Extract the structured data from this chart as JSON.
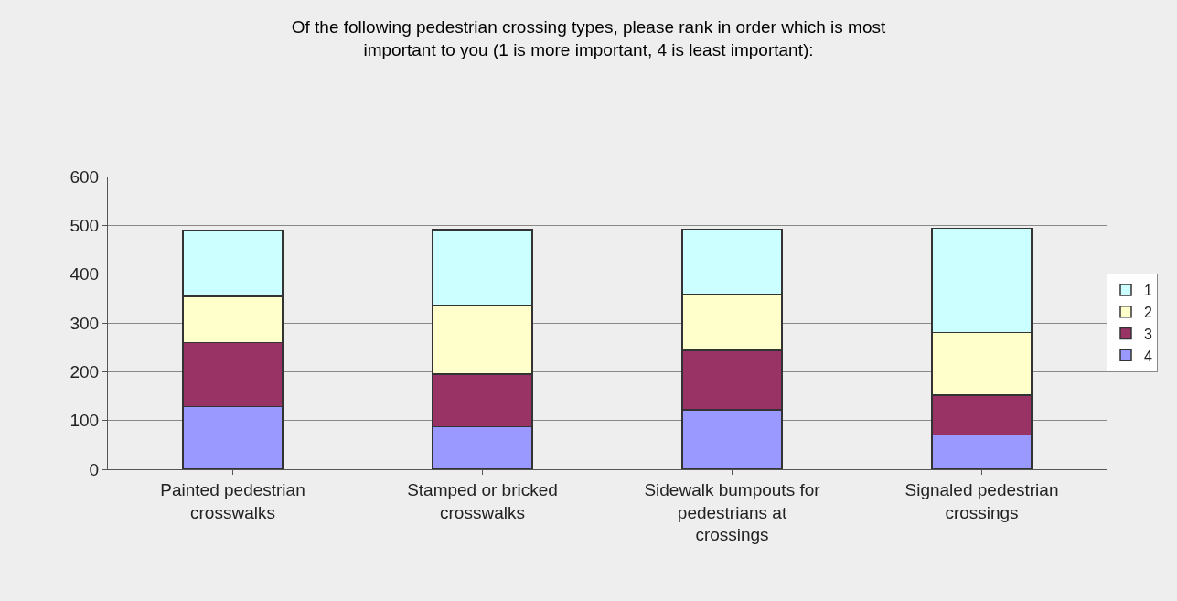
{
  "chart_data": {
    "type": "bar",
    "title": "Of the following pedestrian crossing types, please rank in order which is most important to you (1 is more important, 4 is least important):",
    "categories": [
      "Painted pedestrian crosswalks",
      "Stamped or bricked crosswalks",
      "Sidewalk bumpouts for pedestrians at crossings",
      "Signaled pedestrian crossings"
    ],
    "stacked": true,
    "series": [
      {
        "name": "4",
        "color": "#9999ff",
        "values": [
          128,
          87,
          122,
          70
        ]
      },
      {
        "name": "3",
        "color": "#993366",
        "values": [
          132,
          108,
          122,
          82
        ]
      },
      {
        "name": "2",
        "color": "#ffffcc",
        "values": [
          94,
          141,
          115,
          128
        ]
      },
      {
        "name": "1",
        "color": "#ccffff",
        "values": [
          136,
          155,
          133,
          214
        ]
      }
    ],
    "ylim": [
      0,
      600
    ],
    "yticks": [
      0,
      100,
      200,
      300,
      400,
      500,
      600
    ],
    "grid": "y",
    "legend": "right"
  }
}
